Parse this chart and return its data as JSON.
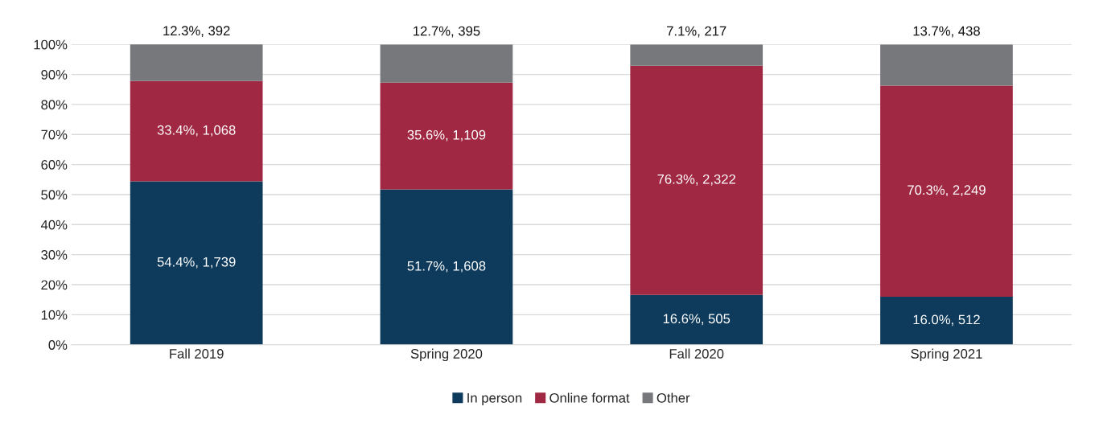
{
  "chart_data": {
    "type": "bar",
    "stacked": true,
    "categories": [
      "Fall 2019",
      "Spring 2020",
      "Fall 2020",
      "Spring 2021"
    ],
    "ylim": [
      0,
      100
    ],
    "yticks": [
      {
        "value": 0,
        "label": "0%"
      },
      {
        "value": 10,
        "label": "10%"
      },
      {
        "value": 20,
        "label": "20%"
      },
      {
        "value": 30,
        "label": "30%"
      },
      {
        "value": 40,
        "label": "40%"
      },
      {
        "value": 50,
        "label": "50%"
      },
      {
        "value": 60,
        "label": "60%"
      },
      {
        "value": 70,
        "label": "70%"
      },
      {
        "value": 80,
        "label": "80%"
      },
      {
        "value": 90,
        "label": "90%"
      },
      {
        "value": 100,
        "label": "100%"
      }
    ],
    "grid": "y",
    "legend": "bottom",
    "series": [
      {
        "name": "In person",
        "color": "#0e3a5c",
        "values": [
          54.4,
          51.7,
          16.6,
          16.0
        ],
        "value_labels": [
          "54.4%, 1,739",
          "51.7%, 1,608",
          "16.6%, 505",
          "16.0%, 512"
        ]
      },
      {
        "name": "Online format",
        "color": "#a12843",
        "values": [
          33.4,
          35.6,
          76.3,
          70.3
        ],
        "value_labels": [
          "33.4%, 1,068",
          "35.6%, 1,109",
          "76.3%, 2,322",
          "70.3%, 2,249"
        ]
      },
      {
        "name": "Other",
        "color": "#77787c",
        "values": [
          12.3,
          12.7,
          7.1,
          13.7
        ],
        "value_labels": [
          "12.3%, 392",
          "12.7%, 395",
          "7.1%, 217",
          "13.7%, 438"
        ]
      }
    ]
  }
}
